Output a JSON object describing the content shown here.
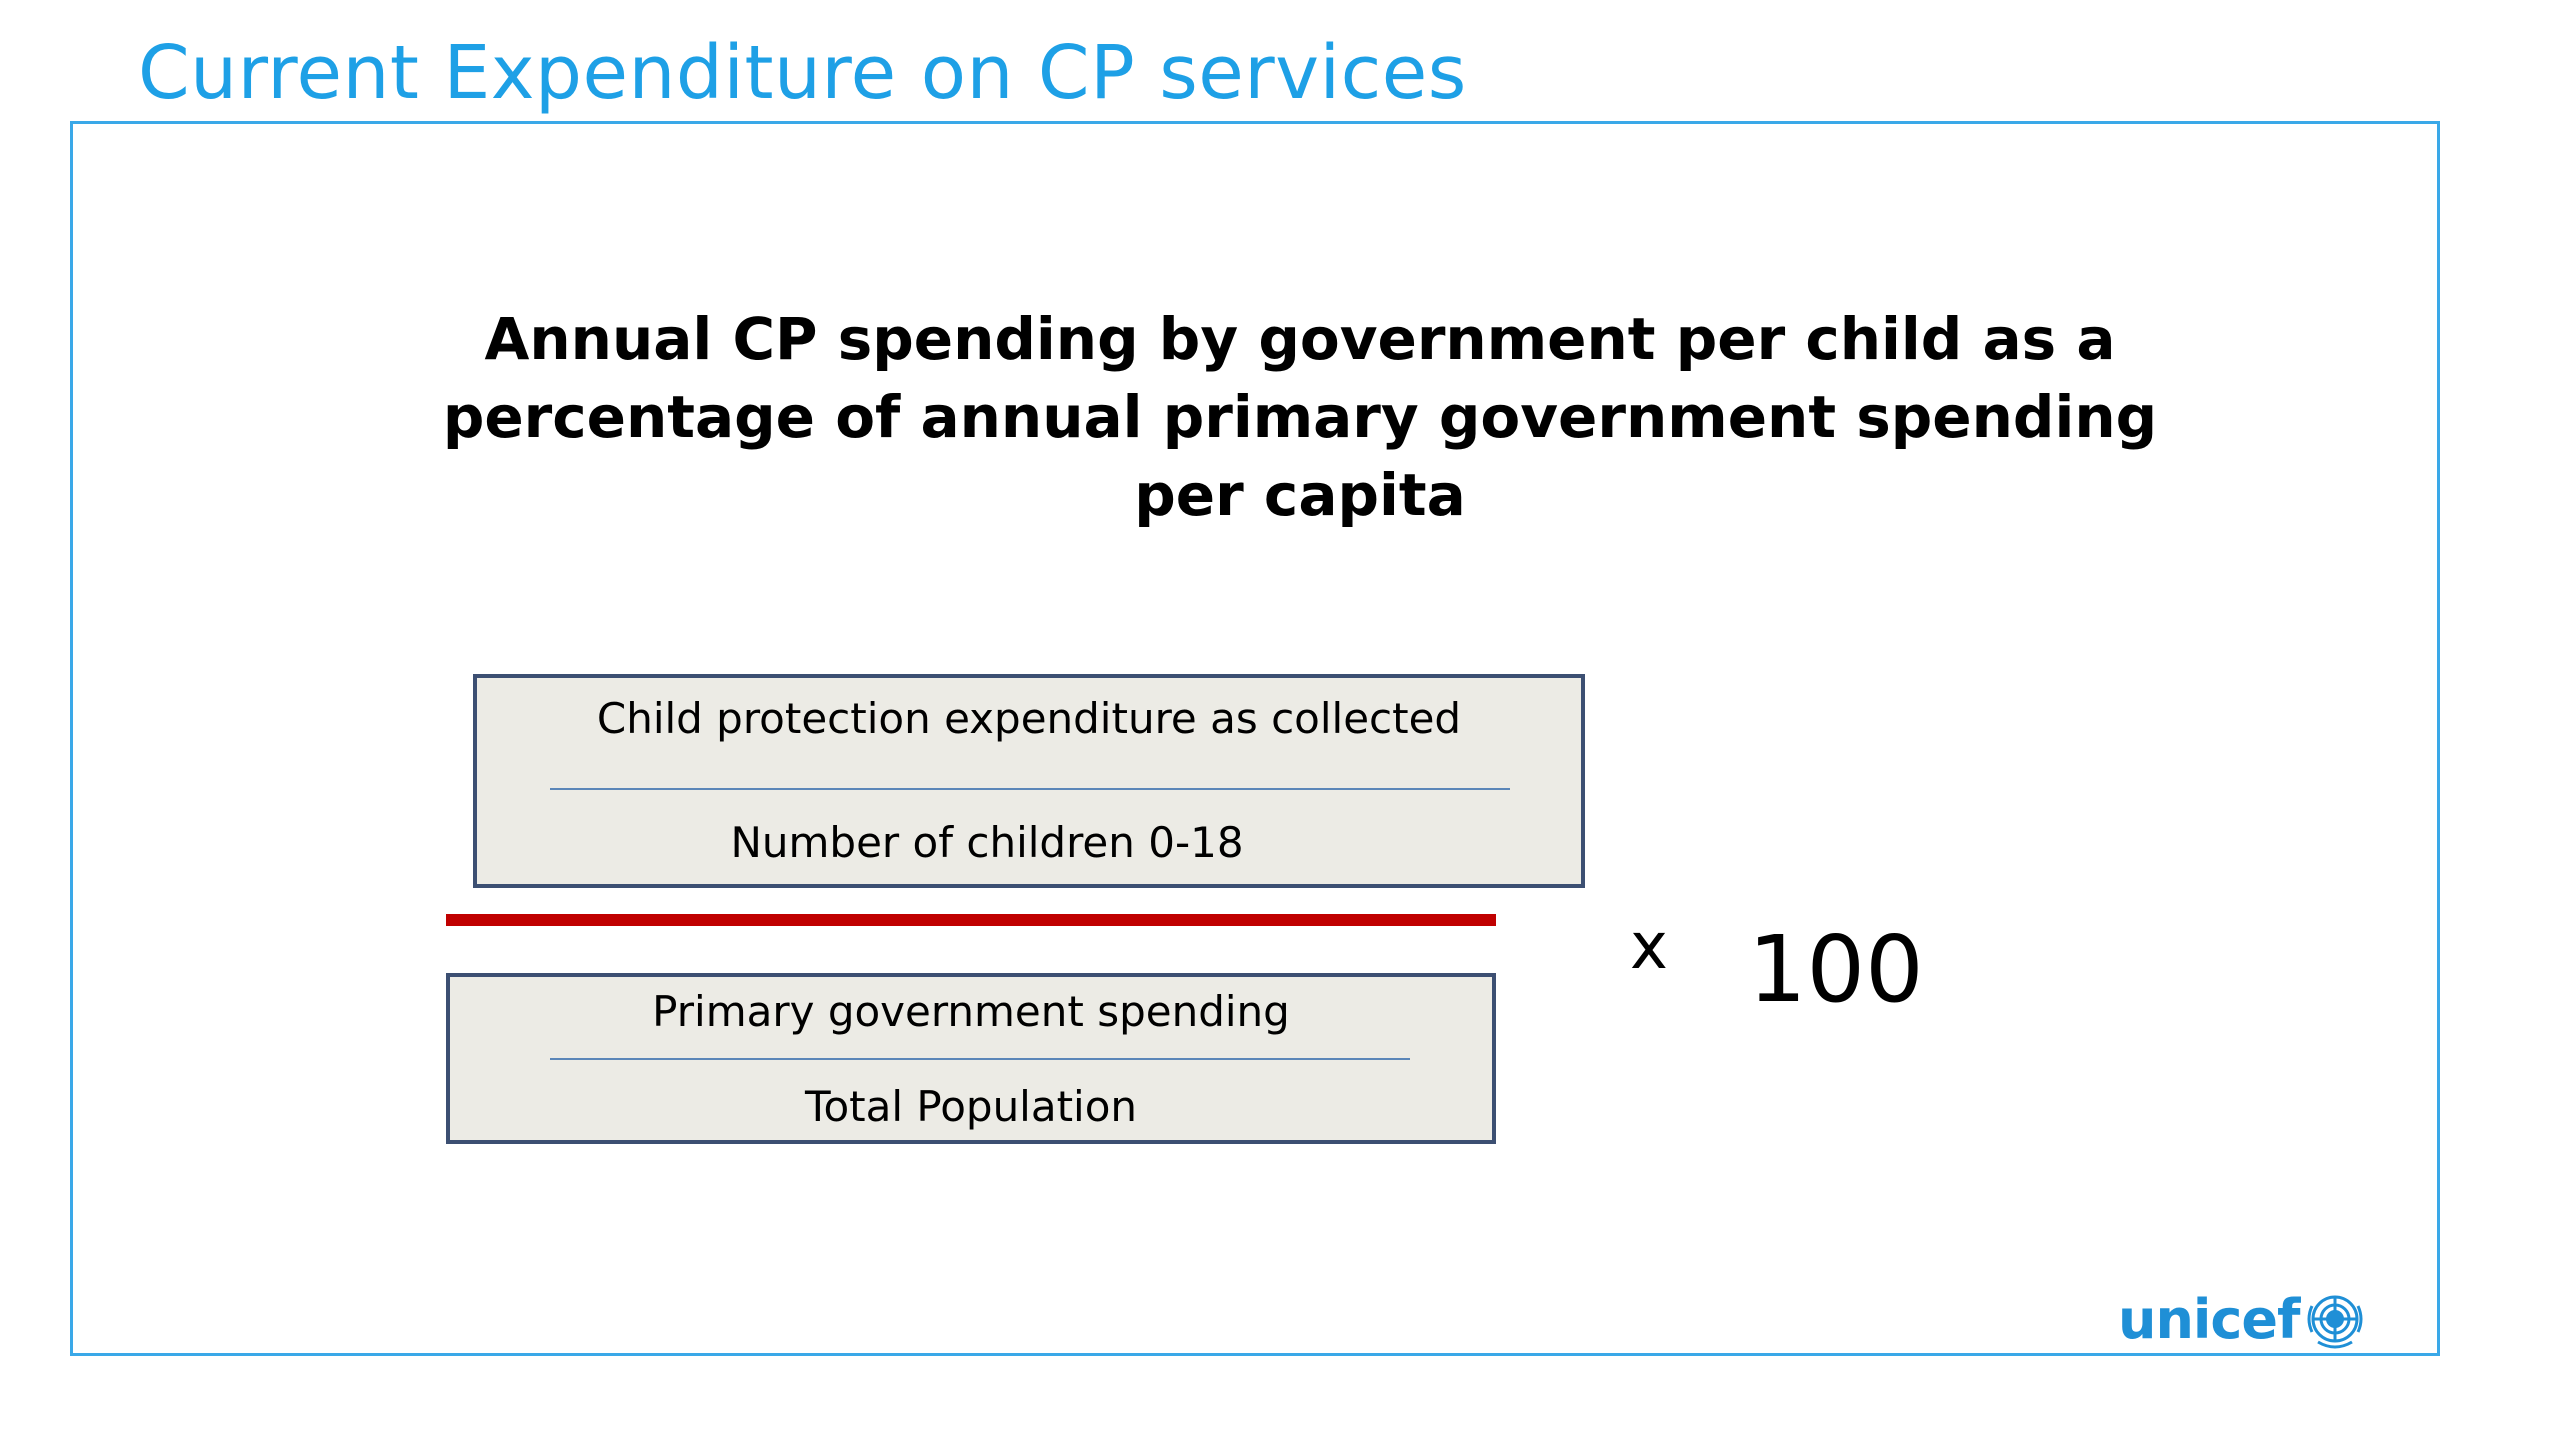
{
  "colors": {
    "accent": "#1ea0e6",
    "frame": "#3aa8e8",
    "box_fill": "#ecebe5",
    "box_border": "#3c4f72",
    "inner_line": "#5b86b8",
    "fraction_bar": "#c00000",
    "logo": "#1f8fd6"
  },
  "slide": {
    "title": "Current Expenditure on CP services"
  },
  "heading": {
    "line1": "Annual CP spending by government per child as a",
    "line2": "percentage of annual primary government spending",
    "line3": "per capita"
  },
  "formula": {
    "numerator": {
      "top": "Child protection expenditure as collected",
      "bottom": "Number of children 0-18"
    },
    "denominator": {
      "top": "Primary government spending",
      "bottom": "Total Population"
    },
    "operator": "x",
    "multiplier": "100"
  },
  "logo": {
    "text": "unicef",
    "icon": "un-emblem-icon"
  }
}
